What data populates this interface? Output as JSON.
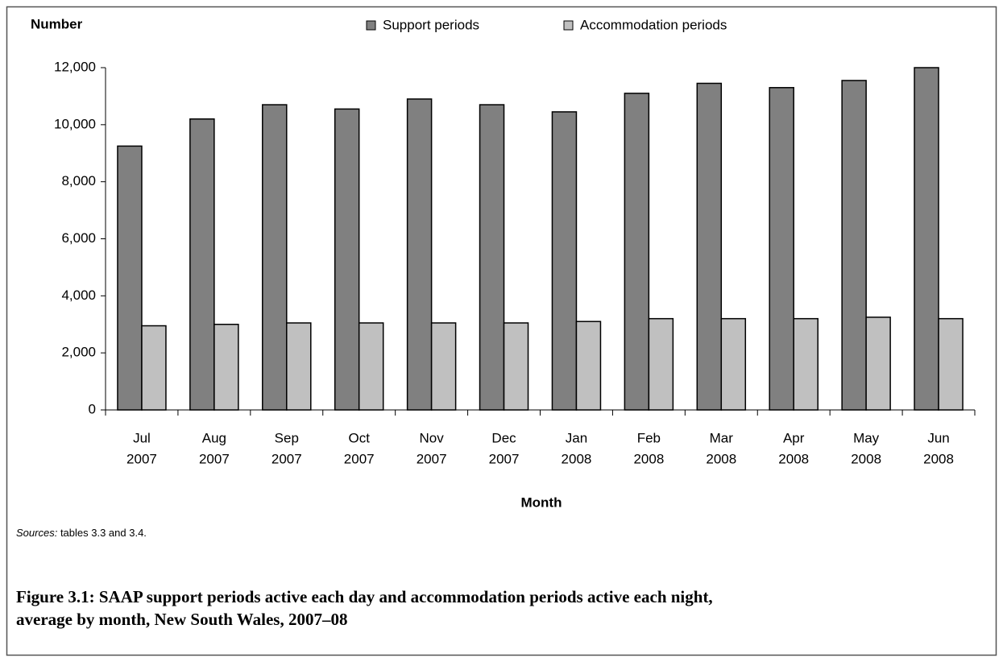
{
  "chart_data": {
    "type": "bar",
    "y_label": "Number",
    "x_label": "Month",
    "categories": [
      [
        "Jul",
        "2007"
      ],
      [
        "Aug",
        "2007"
      ],
      [
        "Sep",
        "2007"
      ],
      [
        "Oct",
        "2007"
      ],
      [
        "Nov",
        "2007"
      ],
      [
        "Dec",
        "2007"
      ],
      [
        "Jan",
        "2008"
      ],
      [
        "Feb",
        "2008"
      ],
      [
        "Mar",
        "2008"
      ],
      [
        "Apr",
        "2008"
      ],
      [
        "May",
        "2008"
      ],
      [
        "Jun",
        "2008"
      ]
    ],
    "series": [
      {
        "name": "Support periods",
        "color": "#808080",
        "values": [
          9250,
          10200,
          10700,
          10550,
          10900,
          10700,
          10450,
          11100,
          11450,
          11300,
          11550,
          12000
        ]
      },
      {
        "name": "Accommodation periods",
        "color": "#c0c0c0",
        "values": [
          2950,
          3000,
          3050,
          3050,
          3050,
          3050,
          3100,
          3200,
          3200,
          3200,
          3250,
          3200
        ]
      }
    ],
    "ylim": [
      0,
      12000
    ],
    "yticks": [
      0,
      {
        "value": 2000,
        "label": "2,000"
      },
      {
        "value": 4000,
        "label": "4,000"
      },
      {
        "value": 6000,
        "label": "6,000"
      },
      {
        "value": 8000,
        "label": "8,000"
      },
      {
        "value": 10000,
        "label": "10,000"
      },
      {
        "value": 12000,
        "label": "12,000"
      }
    ],
    "legend": "top",
    "source_label": "Sources:",
    "source_text": "tables 3.3 and 3.4.",
    "caption": [
      "Figure 3.1: SAAP support periods active each day and accommodation periods active each night,",
      "average by month, New South Wales, 2007–08"
    ]
  }
}
